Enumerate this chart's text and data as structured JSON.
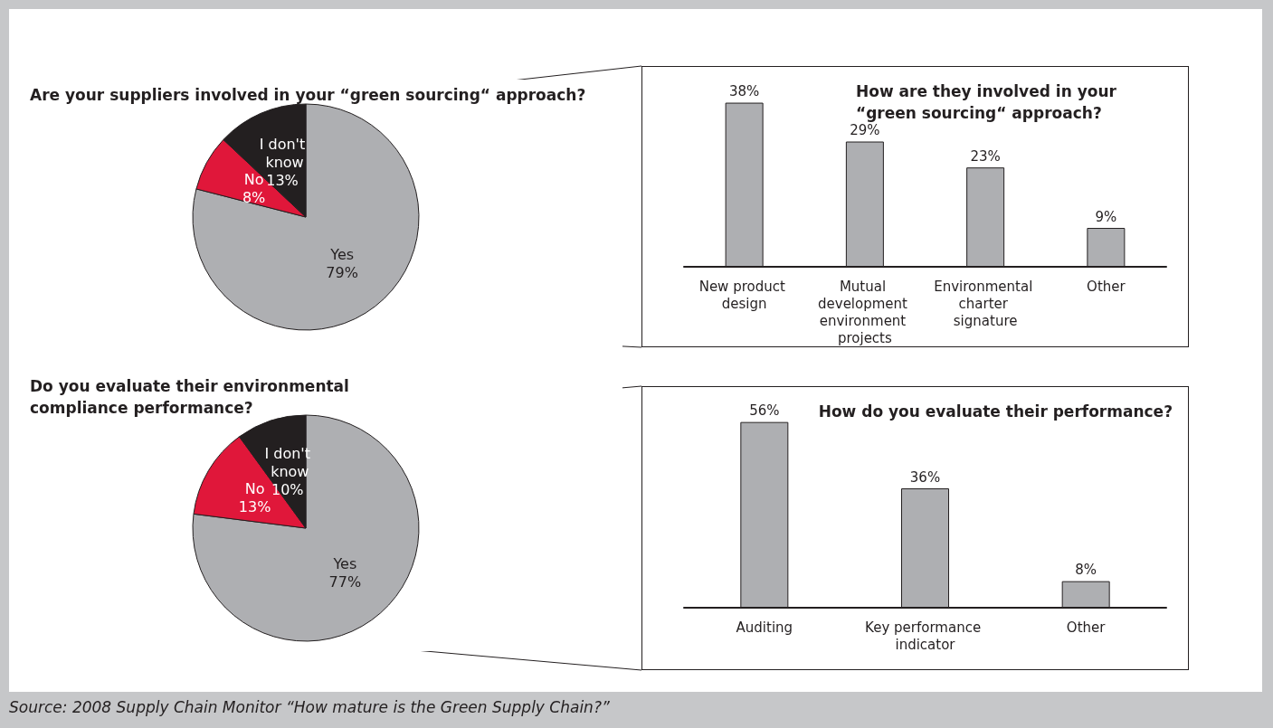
{
  "chart_data": [
    {
      "type": "pie",
      "title": "Are your suppliers involved in your “green sourcing“ approach?",
      "categories": [
        "Yes",
        "No",
        "I don't know"
      ],
      "values": [
        79,
        8,
        13
      ],
      "colors": [
        "#aeafb2",
        "#e0173a",
        "#231f20"
      ],
      "value_labels": [
        "79%",
        "8%",
        "13%"
      ],
      "annotations": [
        "Source: 2008 Supply Chain Monitor “How mature is the Green Supply Chain?”"
      ]
    },
    {
      "type": "bar",
      "title": "How are they involved in your “green sourcing“ approach?",
      "categories": [
        "New product design",
        "Mutual development environment projects",
        "Environmental charter signature",
        "Other"
      ],
      "values": [
        38,
        29,
        23,
        9
      ],
      "color": "#aeafb2",
      "value_labels": [
        "38%",
        "29%",
        "23%",
        "9%"
      ]
    },
    {
      "type": "pie",
      "title": "Do you evaluate their environmental compliance performance?",
      "categories": [
        "Yes",
        "No",
        "I don't know"
      ],
      "values": [
        77,
        13,
        10
      ],
      "colors": [
        "#aeafb2",
        "#e0173a",
        "#231f20"
      ],
      "value_labels": [
        "77%",
        "13%",
        "10%"
      ]
    },
    {
      "type": "bar",
      "title": "How do you evaluate their performance?",
      "categories": [
        "Auditing",
        "Key performance indicator",
        "Other"
      ],
      "values": [
        56,
        36,
        8
      ],
      "color": "#aeafb2",
      "value_labels": [
        "56%",
        "36%",
        "8%"
      ]
    }
  ]
}
